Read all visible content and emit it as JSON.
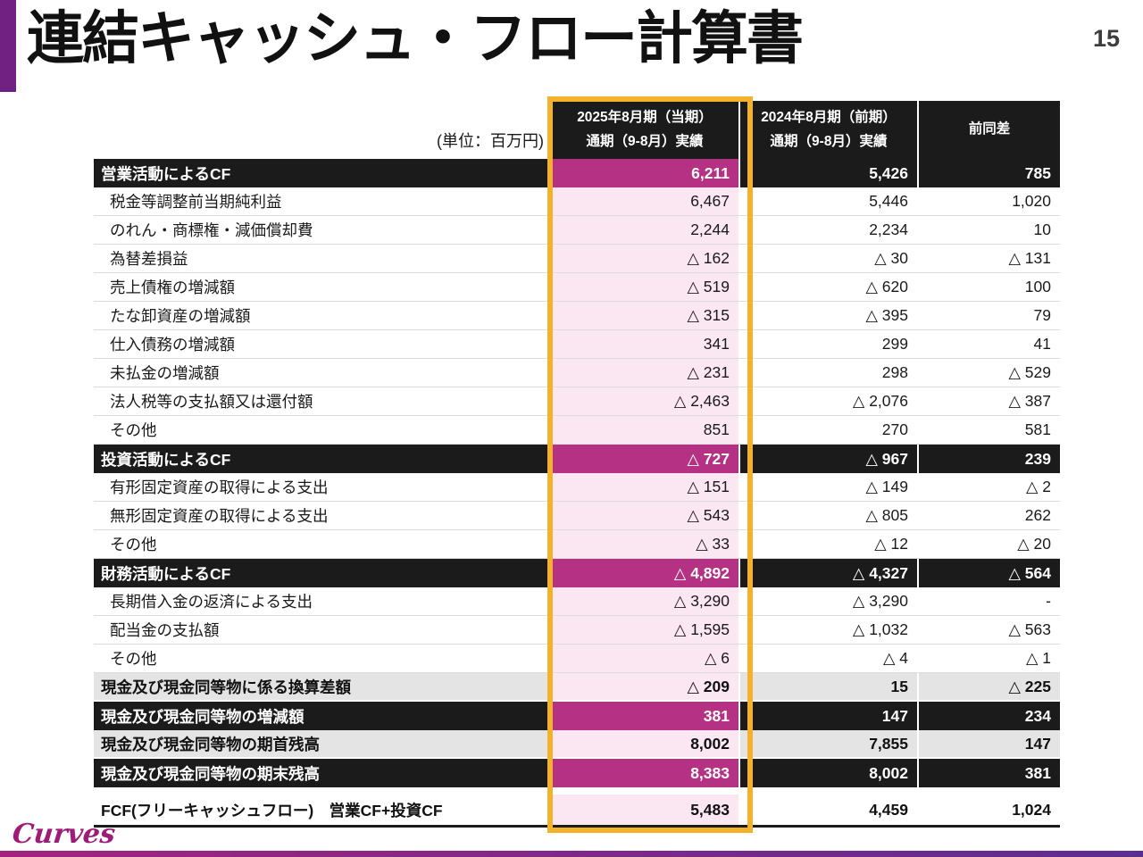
{
  "slide": {
    "title": "連結キャッシュ・フロー計算書",
    "page_number": "15",
    "unit_label": "(単位：百万円)",
    "logo_text": "Curves"
  },
  "colors": {
    "accent_purple": "#702283",
    "section_black": "#1b1b1b",
    "current_magenta": "#b53183",
    "current_pink_bg": "#fbe7f2",
    "highlight_orange": "#f3b229",
    "gray_row": "#e4e4e4",
    "logo_magenta": "#9e1c77"
  },
  "table": {
    "columns": [
      {
        "id": "current",
        "lines": [
          "2025年8月期（当期）",
          "通期（9-8月）実績"
        ]
      },
      {
        "id": "previous",
        "lines": [
          "2024年8月期（前期）",
          "通期（9-8月）実績"
        ]
      },
      {
        "id": "diff",
        "lines": [
          "前同差"
        ]
      }
    ],
    "rows": [
      {
        "type": "section",
        "label": "営業活動によるCF",
        "values": [
          "6,211",
          "5,426",
          "785"
        ]
      },
      {
        "type": "detail",
        "label": "税金等調整前当期純利益",
        "values": [
          "6,467",
          "5,446",
          "1,020"
        ]
      },
      {
        "type": "detail",
        "label": "のれん・商標権・減価償却費",
        "values": [
          "2,244",
          "2,234",
          "10"
        ]
      },
      {
        "type": "detail",
        "label": "為替差損益",
        "values": [
          "△ 162",
          "△ 30",
          "△ 131"
        ]
      },
      {
        "type": "detail",
        "label": "売上債権の増減額",
        "values": [
          "△ 519",
          "△ 620",
          "100"
        ]
      },
      {
        "type": "detail",
        "label": "たな卸資産の増減額",
        "values": [
          "△ 315",
          "△ 395",
          "79"
        ]
      },
      {
        "type": "detail",
        "label": "仕入債務の増減額",
        "values": [
          "341",
          "299",
          "41"
        ]
      },
      {
        "type": "detail",
        "label": "未払金の増減額",
        "values": [
          "△ 231",
          "298",
          "△ 529"
        ]
      },
      {
        "type": "detail",
        "label": "法人税等の支払額又は還付額",
        "values": [
          "△ 2,463",
          "△ 2,076",
          "△ 387"
        ]
      },
      {
        "type": "detail",
        "label": "その他",
        "values": [
          "851",
          "270",
          "581"
        ]
      },
      {
        "type": "section",
        "label": "投資活動によるCF",
        "values": [
          "△ 727",
          "△ 967",
          "239"
        ]
      },
      {
        "type": "detail",
        "label": "有形固定資産の取得による支出",
        "values": [
          "△ 151",
          "△ 149",
          "△ 2"
        ]
      },
      {
        "type": "detail",
        "label": "無形固定資産の取得による支出",
        "values": [
          "△ 543",
          "△ 805",
          "262"
        ]
      },
      {
        "type": "detail",
        "label": "その他",
        "values": [
          "△ 33",
          "△ 12",
          "△ 20"
        ]
      },
      {
        "type": "section",
        "label": "財務活動によるCF",
        "values": [
          "△ 4,892",
          "△ 4,327",
          "△ 564"
        ]
      },
      {
        "type": "detail",
        "label": "長期借入金の返済による支出",
        "values": [
          "△ 3,290",
          "△ 3,290",
          "-"
        ]
      },
      {
        "type": "detail",
        "label": "配当金の支払額",
        "values": [
          "△ 1,595",
          "△ 1,032",
          "△ 563"
        ]
      },
      {
        "type": "detail",
        "label": "その他",
        "values": [
          "△ 6",
          "△ 4",
          "△ 1"
        ]
      },
      {
        "type": "gray",
        "label": "現金及び現金同等物に係る換算差額",
        "values": [
          "△ 209",
          "15",
          "△ 225"
        ]
      },
      {
        "type": "section",
        "label": "現金及び現金同等物の増減額",
        "values": [
          "381",
          "147",
          "234"
        ]
      },
      {
        "type": "gray",
        "label": "現金及び現金同等物の期首残高",
        "values": [
          "8,002",
          "7,855",
          "147"
        ]
      },
      {
        "type": "section",
        "label": "現金及び現金同等物の期末残高",
        "values": [
          "8,383",
          "8,002",
          "381"
        ]
      },
      {
        "type": "fcf",
        "label": "FCF(フリーキャッシュフロー)　営業CF+投資CF",
        "values": [
          "5,483",
          "4,459",
          "1,024"
        ]
      }
    ]
  }
}
